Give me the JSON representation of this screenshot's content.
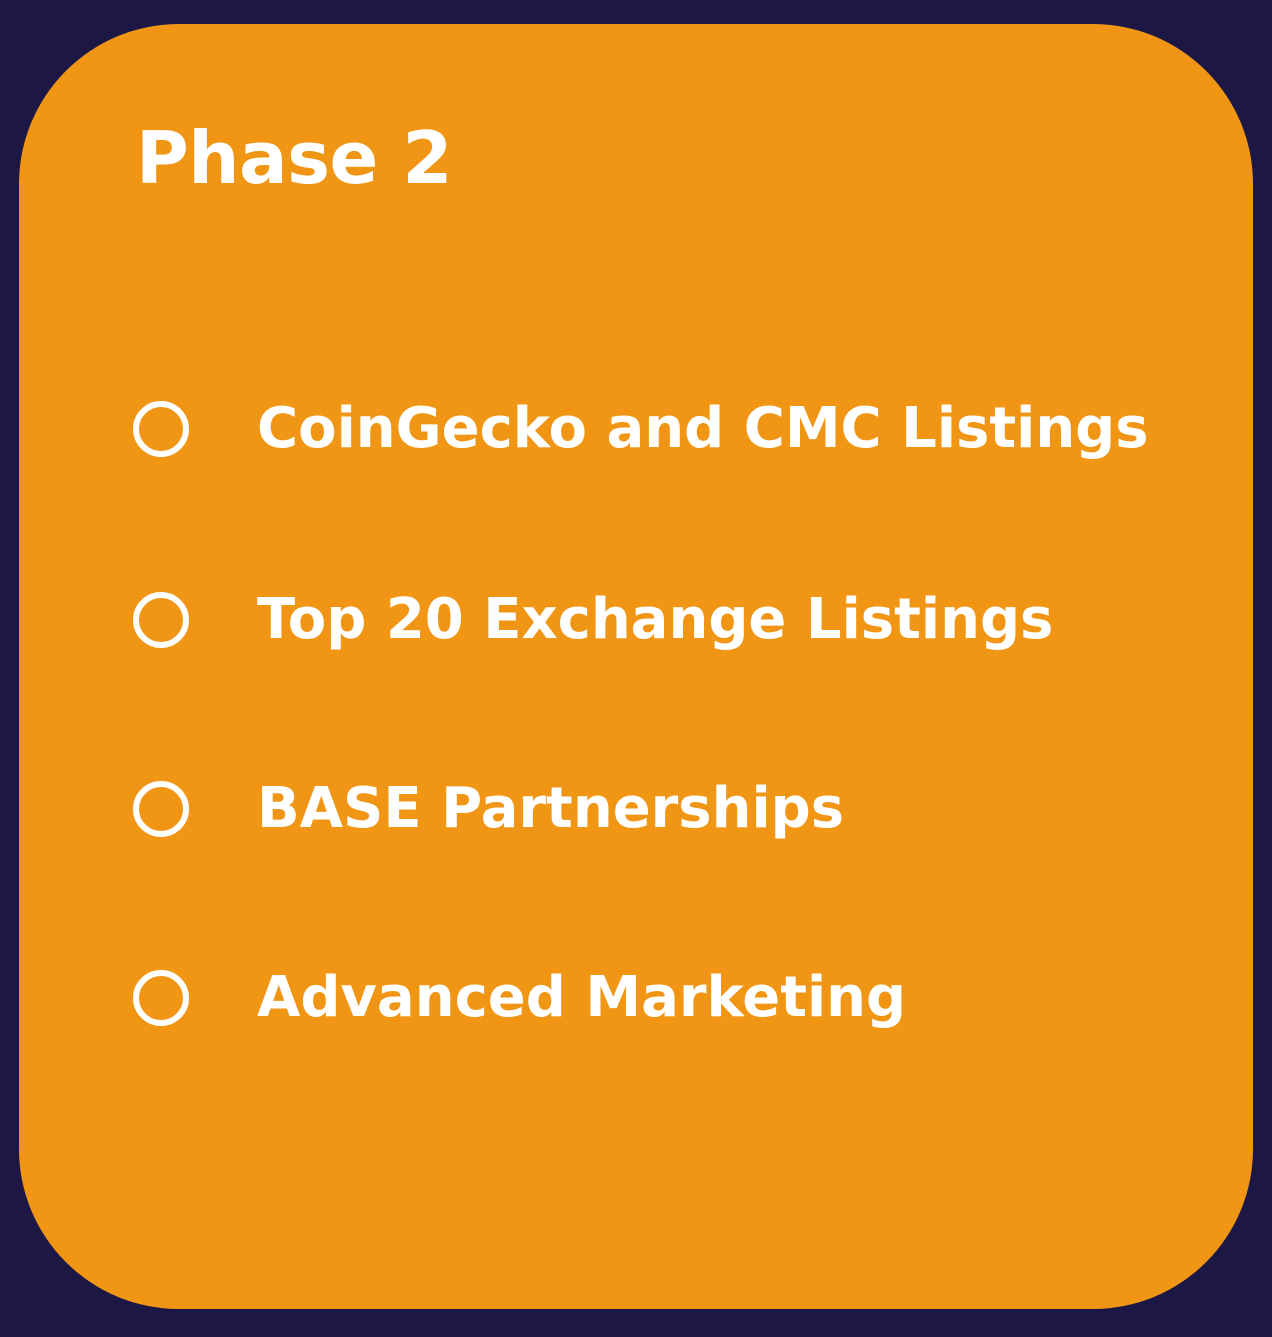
{
  "card": {
    "background_color": "#f19614",
    "title": "Phase 2",
    "items": [
      {
        "label": "CoinGecko and CMC Listings",
        "icon": "circle-icon"
      },
      {
        "label": "Top 20 Exchange Listings",
        "icon": "circle-icon"
      },
      {
        "label": "BASE Partnerships",
        "icon": "circle-icon"
      },
      {
        "label": "Advanced Marketing",
        "icon": "circle-icon"
      }
    ]
  },
  "page": {
    "background_color": "#1d1746"
  }
}
